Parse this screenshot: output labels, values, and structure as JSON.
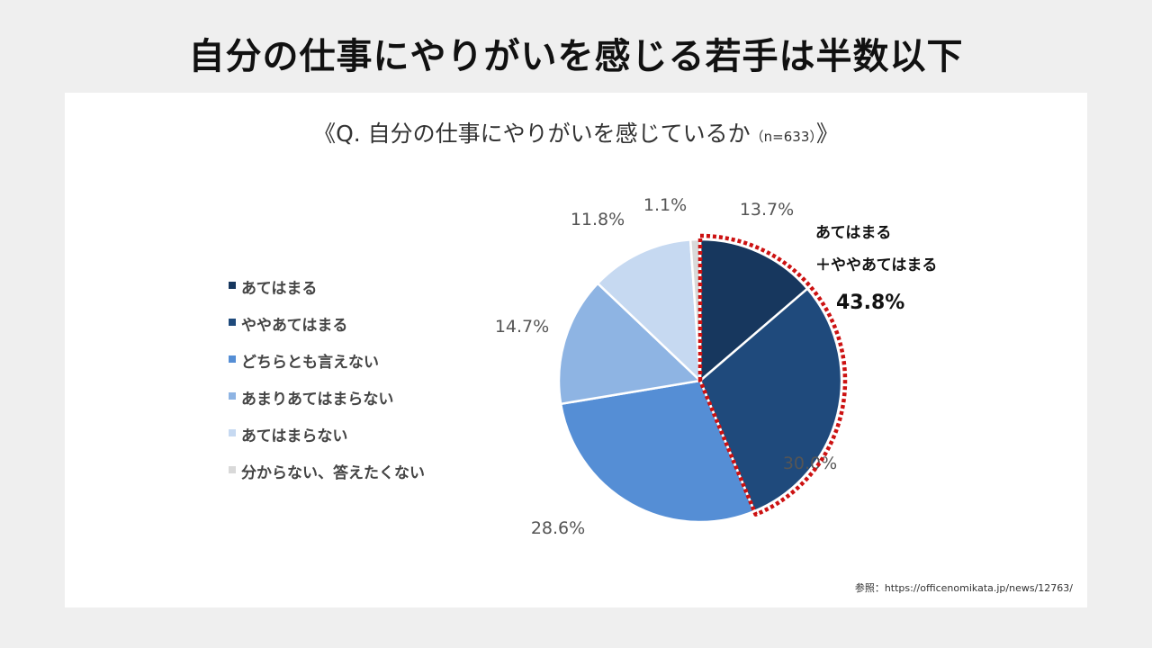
{
  "page": {
    "title": "自分の仕事にやりがいを感じる若手は半数以下",
    "question_prefix": "《Q. 自分の仕事にやりがいを感じているか",
    "question_n": "（n=633）",
    "question_suffix": "》",
    "source": "参照：https://officenomikata.jp/news/12763/"
  },
  "chart_data": {
    "type": "pie",
    "title": "Q. 自分の仕事にやりがいを感じているか",
    "n": 633,
    "start": "12 o'clock, clockwise",
    "categories": [
      "あてはまる",
      "ややあてはまる",
      "どちらとも言えない",
      "あまりあてはまらない",
      "あてはまらない",
      "分からない、答えたくない"
    ],
    "values": [
      13.7,
      30.0,
      28.6,
      14.7,
      11.8,
      1.1
    ],
    "value_labels": [
      "13.7%",
      "30.0%",
      "28.6%",
      "14.7%",
      "11.8%",
      "1.1%"
    ],
    "colors": [
      "#17375e",
      "#1f4a7c",
      "#558ed5",
      "#8eb4e3",
      "#c6d9f1",
      "#d9d9d9"
    ],
    "legend_position": "left",
    "highlight": {
      "label_line1": "あてはまる",
      "label_line2": "＋ややあてはまる",
      "value": "43.8%",
      "categories": [
        "あてはまる",
        "ややあてはまる"
      ],
      "border": "red dotted",
      "border_color": "#cc1111"
    }
  }
}
